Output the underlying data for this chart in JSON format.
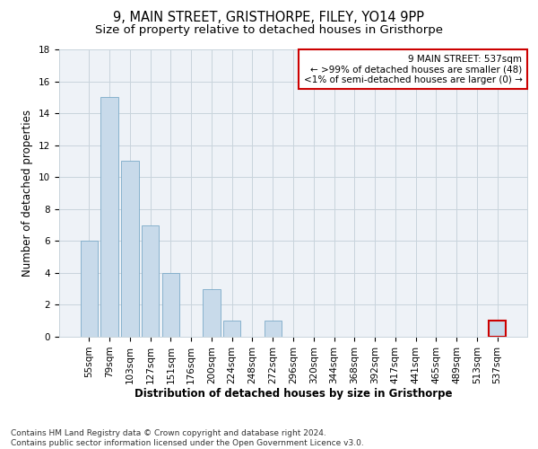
{
  "title": "9, MAIN STREET, GRISTHORPE, FILEY, YO14 9PP",
  "subtitle": "Size of property relative to detached houses in Gristhorpe",
  "xlabel": "Distribution of detached houses by size in Gristhorpe",
  "ylabel": "Number of detached properties",
  "categories": [
    "55sqm",
    "79sqm",
    "103sqm",
    "127sqm",
    "151sqm",
    "176sqm",
    "200sqm",
    "224sqm",
    "248sqm",
    "272sqm",
    "296sqm",
    "320sqm",
    "344sqm",
    "368sqm",
    "392sqm",
    "417sqm",
    "441sqm",
    "465sqm",
    "489sqm",
    "513sqm",
    "537sqm"
  ],
  "values": [
    6,
    15,
    11,
    7,
    4,
    0,
    3,
    1,
    0,
    1,
    0,
    0,
    0,
    0,
    0,
    0,
    0,
    0,
    0,
    0,
    1
  ],
  "bar_color": "#c8daea",
  "bar_edge_color": "#7baac8",
  "highlight_bar_index": 20,
  "highlight_bar_edge_color": "#cc0000",
  "annotation_box_text": "9 MAIN STREET: 537sqm\n← >99% of detached houses are smaller (48)\n<1% of semi-detached houses are larger (0) →",
  "annotation_box_edge_color": "#cc0000",
  "annotation_box_facecolor": "#ffffff",
  "ylim": [
    0,
    18
  ],
  "yticks": [
    0,
    2,
    4,
    6,
    8,
    10,
    12,
    14,
    16,
    18
  ],
  "grid_color": "#c8d4dc",
  "background_color": "#ffffff",
  "plot_bg_color": "#eef2f7",
  "footer_line1": "Contains HM Land Registry data © Crown copyright and database right 2024.",
  "footer_line2": "Contains public sector information licensed under the Open Government Licence v3.0.",
  "title_fontsize": 10.5,
  "subtitle_fontsize": 9.5,
  "xlabel_fontsize": 8.5,
  "ylabel_fontsize": 8.5,
  "tick_fontsize": 7.5,
  "annotation_fontsize": 7.5,
  "footer_fontsize": 6.5
}
